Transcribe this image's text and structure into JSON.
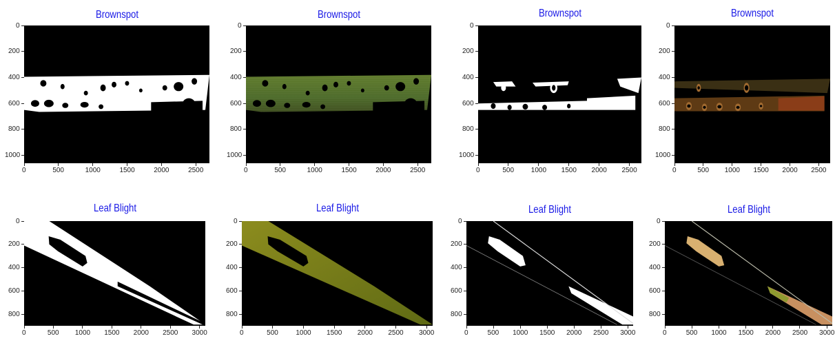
{
  "panels": [
    {
      "title": "Brownspot",
      "image": "brownspot-binary-mask",
      "xticks": [
        "0",
        "500",
        "1000",
        "1500",
        "2000",
        "2500"
      ],
      "yticks": [
        "0",
        "200",
        "400",
        "600",
        "800",
        "1000"
      ],
      "xlim": [
        0,
        2700
      ],
      "ylim": [
        0,
        1060
      ]
    },
    {
      "title": "Brownspot",
      "image": "brownspot-segmented-leaf",
      "xticks": [
        "0",
        "500",
        "1000",
        "1500",
        "2000",
        "2500"
      ],
      "yticks": [
        "0",
        "200",
        "400",
        "600",
        "800",
        "1000"
      ],
      "xlim": [
        0,
        2700
      ],
      "ylim": [
        0,
        1060
      ]
    },
    {
      "title": "Brownspot",
      "image": "brownspot-lesion-mask",
      "xticks": [
        "0",
        "500",
        "1000",
        "1500",
        "2000",
        "2500"
      ],
      "yticks": [
        "0",
        "200",
        "400",
        "600",
        "800",
        "1000"
      ],
      "xlim": [
        0,
        2700
      ],
      "ylim": [
        0,
        1060
      ]
    },
    {
      "title": "Brownspot",
      "image": "brownspot-lesion-segmented",
      "xticks": [
        "0",
        "500",
        "1000",
        "1500",
        "2000",
        "2500"
      ],
      "yticks": [
        "0",
        "200",
        "400",
        "600",
        "800",
        "1000"
      ],
      "xlim": [
        0,
        2700
      ],
      "ylim": [
        0,
        1060
      ]
    },
    {
      "title": "Leaf Blight",
      "image": "leafblight-binary-mask",
      "xticks": [
        "0",
        "500",
        "1000",
        "1500",
        "2000",
        "2500",
        "3000"
      ],
      "yticks": [
        "0",
        "200",
        "400",
        "600",
        "800"
      ],
      "xlim": [
        0,
        3100
      ],
      "ylim": [
        0,
        900
      ]
    },
    {
      "title": "Leaf Blight",
      "image": "leafblight-segmented-leaf",
      "xticks": [
        "0",
        "500",
        "1000",
        "1500",
        "2000",
        "2500",
        "3000"
      ],
      "yticks": [
        "0",
        "200",
        "400",
        "600",
        "800"
      ],
      "xlim": [
        0,
        3100
      ],
      "ylim": [
        0,
        900
      ]
    },
    {
      "title": "Leaf Blight",
      "image": "leafblight-lesion-mask",
      "xticks": [
        "0",
        "500",
        "1000",
        "1500",
        "2000",
        "2500",
        "3000"
      ],
      "yticks": [
        "0",
        "200",
        "400",
        "600",
        "800"
      ],
      "xlim": [
        0,
        3100
      ],
      "ylim": [
        0,
        900
      ]
    },
    {
      "title": "Leaf Blight",
      "image": "leafblight-lesion-segmented",
      "xticks": [
        "0",
        "500",
        "1000",
        "1500",
        "2000",
        "2500",
        "3000"
      ],
      "yticks": [
        "0",
        "200",
        "400",
        "600",
        "800"
      ],
      "xlim": [
        0,
        3100
      ],
      "ylim": [
        0,
        900
      ]
    }
  ]
}
